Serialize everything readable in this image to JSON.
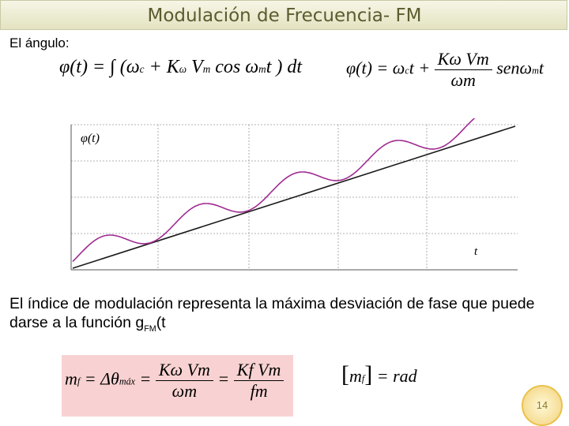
{
  "slide": {
    "title": "Modulación de Frecuencia- FM",
    "angle_label": "El ángulo:",
    "description_part1": "El índice de modulación representa la máxima desviación de fase que puede darse a la función g",
    "description_sub": "FM",
    "description_part2": "(t",
    "page_number": "14"
  },
  "formulas": {
    "f1_lhs": "φ(t) = ∫ (ω",
    "f1_c": "c",
    "f1_mid": " + K",
    "f1_w": "ω",
    "f1_v": " V",
    "f1_m": "m",
    "f1_cos": " cos ω",
    "f1_m2": "m",
    "f1_end": "t ) dt",
    "f2_lhs": "φ(t) = ω",
    "f2_c": "c",
    "f2_t": "t +",
    "f2_num": "Kω Vm",
    "f2_den": "ωm",
    "f2_tail": "senω",
    "f2_m": "m",
    "f2_t2": "t",
    "f3_lhs": "m",
    "f3_f": "f",
    "f3_eq": " = Δθ",
    "f3_max": "máx",
    "f3_num1": "Kω Vm",
    "f3_den1": "ωm",
    "f3_num2": "Kf Vm",
    "f3_den2": "fm",
    "f4_lhs": "m",
    "f4_f": "f",
    "f4_rhs": " = rad"
  },
  "graph": {
    "y_label": "φ(t)",
    "x_label": "t"
  },
  "colors": {
    "curve": "#a02b92",
    "line": "#1a1a1a",
    "formula_box": "#f8d2d2",
    "title_text": "#5b5b2e"
  }
}
